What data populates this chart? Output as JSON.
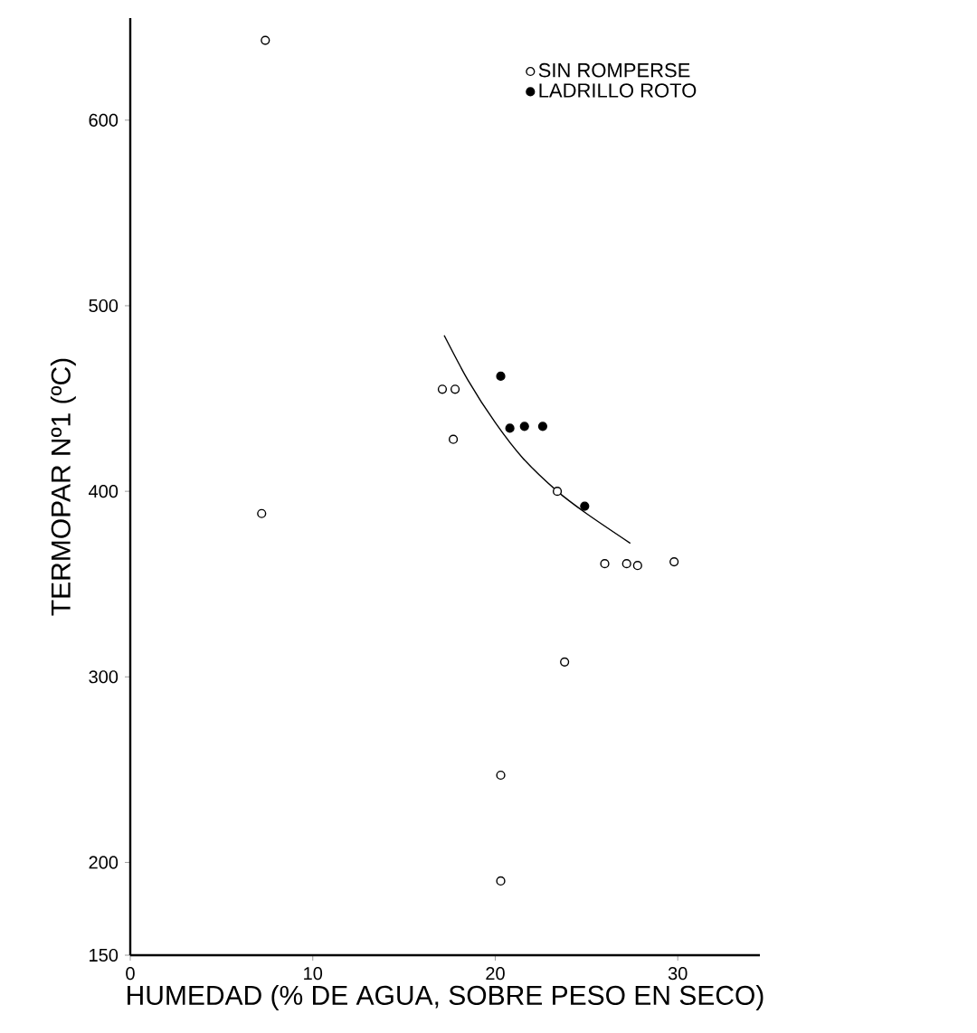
{
  "chart_data": {
    "type": "scatter",
    "xlabel": "HUMEDAD (% DE AGUA, SOBRE PESO EN SECO)",
    "ylabel": "TERMOPAR Nº1 (ºC)",
    "xlim": [
      0,
      34.5
    ],
    "ylim": [
      150,
      655
    ],
    "xticks": [
      0,
      10,
      20,
      30
    ],
    "yticks": [
      150,
      200,
      300,
      400,
      500,
      600
    ],
    "grid": false,
    "legend": "top right",
    "series": [
      {
        "name": "SIN ROMPERSE",
        "color": "#000000",
        "marker": "circle",
        "x": [
          7.4,
          7.2,
          17.1,
          17.8,
          17.7,
          23.4,
          26.0,
          27.2,
          27.8,
          29.8,
          23.8,
          20.3,
          20.3
        ],
        "values": [
          643,
          388,
          455,
          455,
          428,
          400,
          361,
          361,
          360,
          362,
          308,
          247,
          190
        ]
      },
      {
        "name": "LADRILLO ROTO",
        "color": "#000000",
        "marker": "circle",
        "x": [
          20.3,
          20.8,
          21.6,
          22.6,
          24.9
        ],
        "values": [
          462,
          434,
          435,
          435,
          392
        ]
      },
      {
        "type": "line",
        "color": "#000000",
        "marker": "none",
        "x": [
          17.2,
          18.5,
          20.0,
          21.5,
          23.4,
          25.0,
          27.4
        ],
        "values": [
          484,
          460,
          437,
          418,
          400,
          388,
          372
        ]
      }
    ]
  }
}
